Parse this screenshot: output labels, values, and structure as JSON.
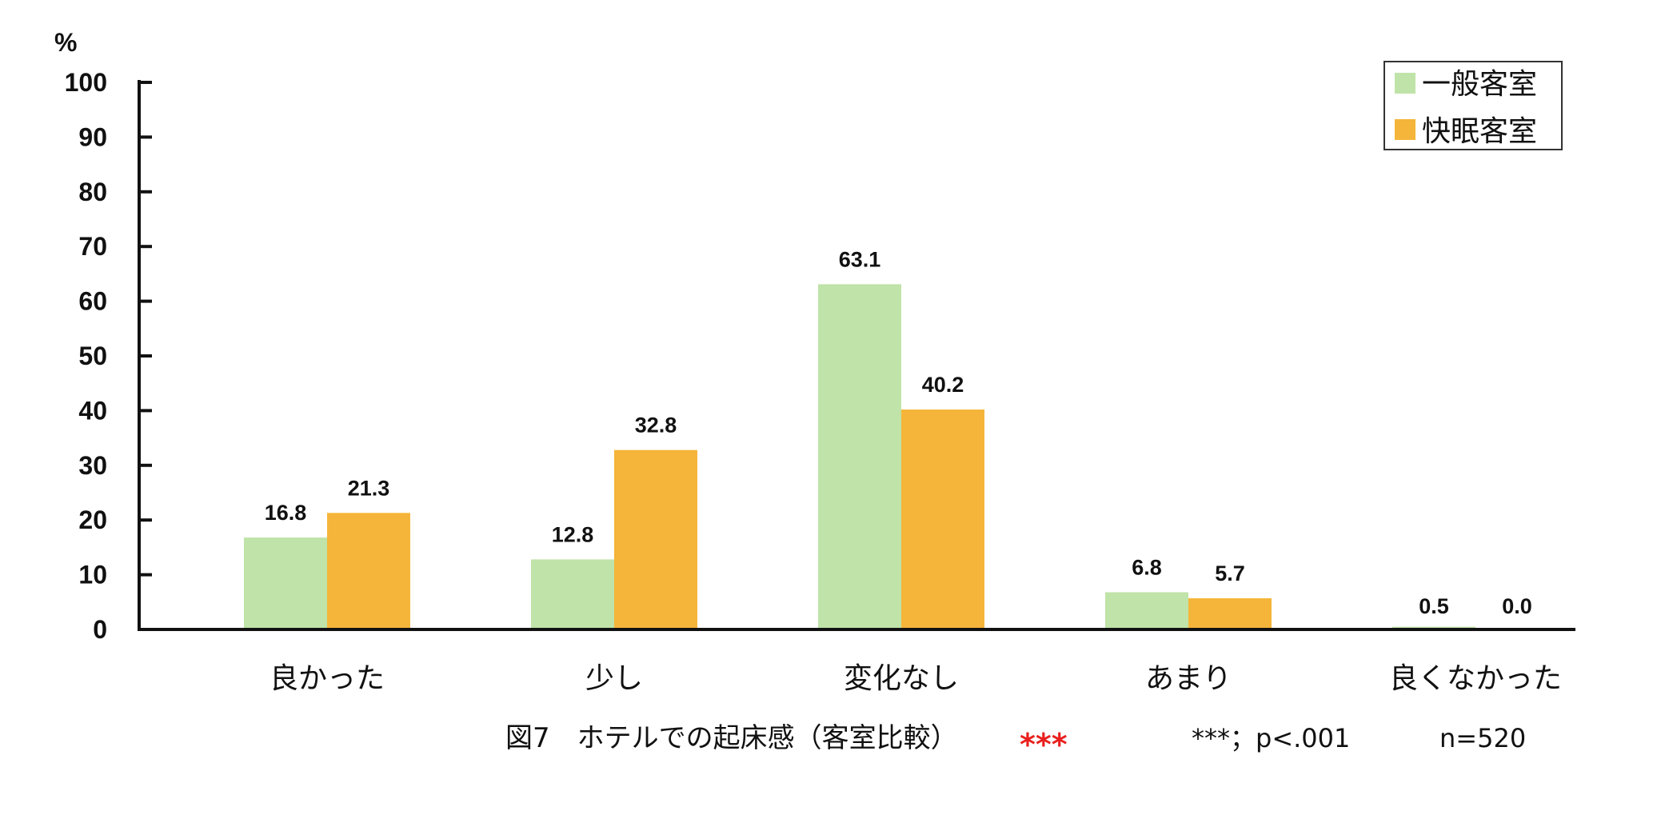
{
  "chart_data": {
    "type": "bar",
    "title": "図7　ホテルでの起床感（客室比較）",
    "significance_mark": "***",
    "significance_note": "***；p<.001",
    "sample_size": "n=520",
    "ylabel": "%",
    "xlabel": "",
    "ylim": [
      0,
      100
    ],
    "yticks": [
      "0",
      "10",
      "20",
      "30",
      "40",
      "50",
      "60",
      "70",
      "80",
      "90",
      "100"
    ],
    "categories": [
      "良かった",
      "少し",
      "変化なし",
      "あまり",
      "良くなかった"
    ],
    "series": [
      {
        "name": "一般客室",
        "color": "#bfe3a8",
        "values": [
          16.8,
          12.8,
          63.1,
          6.8,
          0.5
        ],
        "labels": [
          "16.8",
          "12.8",
          "63.1",
          "6.8",
          "0.5"
        ]
      },
      {
        "name": "快眠客室",
        "color": "#f5b53a",
        "values": [
          21.3,
          32.8,
          40.2,
          5.7,
          0.0
        ],
        "labels": [
          "21.3",
          "32.8",
          "40.2",
          "5.7",
          "0.0"
        ]
      }
    ],
    "legend_position": "top-right",
    "grid": false
  }
}
